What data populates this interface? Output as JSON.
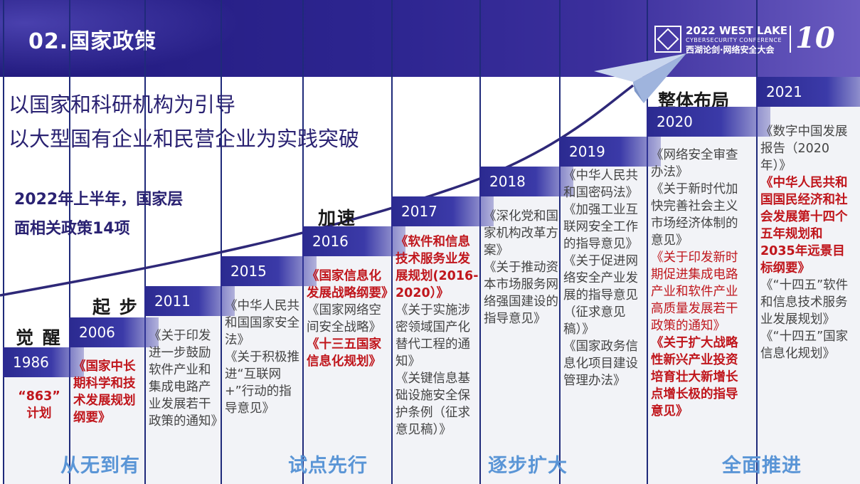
{
  "header": {
    "title": "02.国家政策",
    "logo": {
      "line1": "2022 WEST LAKE",
      "line2": "CYBERSECURITY CONFERENCE",
      "line3": "西湖论剑·网络安全大会",
      "badge": "10"
    }
  },
  "headlines": [
    "以国家和科研机构为引导",
    "以大型国有企业和民营企业为实践突破"
  ],
  "note": [
    "2022年上半年，国家层",
    "面相关政策14项"
  ],
  "stages": {
    "awaken": "觉 醒",
    "start": "起 步",
    "accelerate": "加速",
    "overall": "整体布局"
  },
  "timeline": [
    {
      "year": "1986",
      "items": [
        {
          "text": "“863”\n计划",
          "highlight": true
        }
      ]
    },
    {
      "year": "2006",
      "items": [
        {
          "text": "《国家中长期科学和技术发展规划纲要》",
          "highlight": true
        }
      ]
    },
    {
      "year": "2011",
      "items": [
        {
          "text": "《关于印发进一步鼓励软件产业和集成电路产业发展若干政策的通知》",
          "highlight": false
        }
      ]
    },
    {
      "year": "2015",
      "items": [
        {
          "text": "《中华人民共和国国家安全法》",
          "highlight": false
        },
        {
          "text": "《关于积极推进“互联网+”行动的指导意见》",
          "highlight": false
        }
      ]
    },
    {
      "year": "2016",
      "items": [
        {
          "text": "《国家信息化发展战略纲要》",
          "highlight": true
        },
        {
          "text": "《国家网络空间安全战略》",
          "highlight": false
        },
        {
          "text": "《十三五国家信息化规划》",
          "highlight": true
        }
      ]
    },
    {
      "year": "2017",
      "items": [
        {
          "text": "《软件和信息技术服务业发展规划(2016-2020）》",
          "highlight": true
        },
        {
          "text": "《关于实施涉密领域国产化替代工程的通知》",
          "highlight": false
        },
        {
          "text": "《关键信息基础设施安全保护条例（征求意见稿）》",
          "highlight": false
        }
      ]
    },
    {
      "year": "2018",
      "items": [
        {
          "text": "《深化党和国家机构改革方案》",
          "highlight": false
        },
        {
          "text": "《关于推动资本市场服务网络强国建设的指导意见》",
          "highlight": false
        }
      ]
    },
    {
      "year": "2019",
      "items": [
        {
          "text": "《中华人民共和国密码法》",
          "highlight": false
        },
        {
          "text": "《加强工业互联网安全工作的指导意见》",
          "highlight": false
        },
        {
          "text": "《关于促进网络安全产业发展的指导意见（征求意见稿）》",
          "highlight": false
        },
        {
          "text": "《国家政务信息化项目建设管理办法》",
          "highlight": false
        }
      ]
    },
    {
      "year": "2020",
      "items": [
        {
          "text": "《网络安全审查办法》",
          "highlight": false
        },
        {
          "text": "《关于新时代加快完善社会主义市场经济体制的意见》",
          "highlight": false
        },
        {
          "text": "《关于印发新时期促进集成电路产业和软件产业高质量发展若干政策的通知》",
          "highlight": false,
          "accent": true
        },
        {
          "text": "《关于扩大战略性新兴产业投资培育壮大新增长点增长极的指导意见》",
          "highlight": true
        }
      ]
    },
    {
      "year": "2021",
      "items": [
        {
          "text": "《数字中国发展报告（2020年）》",
          "highlight": false
        },
        {
          "text": "《中华人民共和国国民经济和社会发展第十四个五年规划和2035年远景目标纲要》",
          "highlight": true
        },
        {
          "text": "《“十四五”软件和信息技术服务业发展规划》",
          "highlight": false
        },
        {
          "text": "《“十四五”国家信息化规划》",
          "highlight": false
        }
      ]
    }
  ],
  "phases": [
    "从无到有",
    "试点先行",
    "逐步扩大",
    "全面推进"
  ],
  "colors": {
    "accent_red": "#c0161c",
    "navy": "#2a2272",
    "phase_blue": "#5a95d6"
  }
}
